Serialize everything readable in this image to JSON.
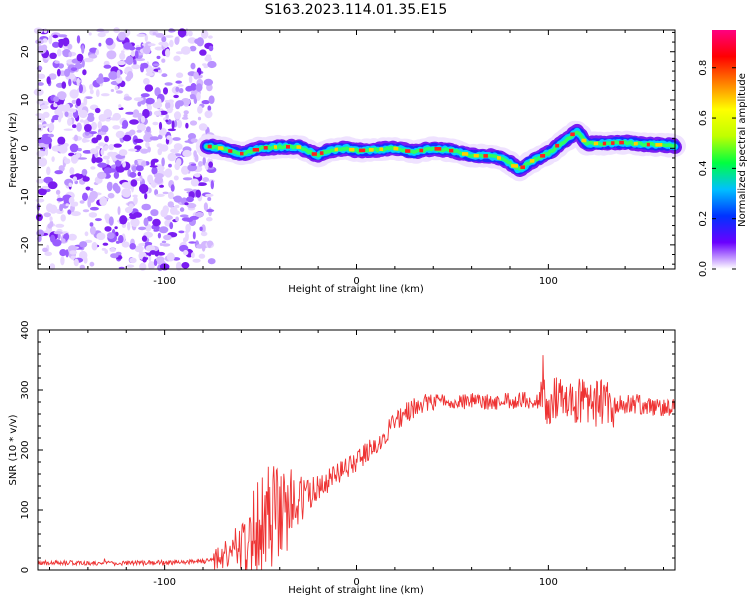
{
  "figure": {
    "title": "S163.2023.114.01.35.E15",
    "background": "#ffffff"
  },
  "chart_data": [
    {
      "type": "heatmap",
      "title": "",
      "xlabel": "Height of straight line (km)",
      "ylabel": "Frequency (Hz)",
      "xlim": [
        -166,
        166
      ],
      "ylim": [
        -25,
        24.5
      ],
      "x_ticks": [
        -100,
        0,
        100
      ],
      "x_tick_labels": [
        "-100",
        "0",
        "100"
      ],
      "y_ticks": [
        -20,
        -10,
        0,
        10,
        20
      ],
      "y_tick_labels": [
        "-20",
        "-10",
        "0",
        "10",
        "20"
      ],
      "grid": false,
      "noise_region_x": [
        -166,
        -75
      ],
      "ridge": {
        "x": [
          -78,
          -70,
          -60,
          -50,
          -40,
          -30,
          -20,
          -15,
          -5,
          0,
          10,
          20,
          30,
          40,
          50,
          60,
          70,
          75,
          80,
          85,
          90,
          95,
          100,
          105,
          110,
          115,
          120,
          130,
          140,
          150,
          160,
          166
        ],
        "freq_hz": [
          0.5,
          0,
          -1.2,
          0,
          0.3,
          0.3,
          -1.5,
          -0.5,
          0,
          -0.5,
          -0.3,
          0,
          -0.8,
          0,
          -0.5,
          -1.5,
          -1.6,
          -2,
          -3,
          -4.5,
          -3,
          -2,
          -1,
          0.5,
          2,
          3.5,
          1,
          1,
          1.2,
          0.8,
          0.7,
          0.5
        ],
        "peak_amplitude": 0.95
      },
      "colorbar": {
        "label": "Normalized spectral amplitude",
        "range": [
          0,
          0.95
        ],
        "ticks": [
          0.0,
          0.2,
          0.4,
          0.6,
          0.8
        ],
        "tick_labels": [
          "0.0",
          "0.2",
          "0.4",
          "0.6",
          "0.8"
        ],
        "colormap": [
          "#ffffff",
          "#6a00ff",
          "#0033ff",
          "#00c0ff",
          "#00ff40",
          "#c0ff00",
          "#ffff00",
          "#ff8000",
          "#ff0000",
          "#ff0080"
        ]
      }
    },
    {
      "type": "line",
      "title": "",
      "xlabel": "Height of straight line (km)",
      "ylabel": "SNR (10 * v/v)",
      "xlim": [
        -166,
        166
      ],
      "ylim": [
        0,
        400
      ],
      "x_ticks": [
        -100,
        0,
        100
      ],
      "x_tick_labels": [
        "-100",
        "0",
        "100"
      ],
      "y_ticks": [
        0,
        100,
        200,
        300,
        400
      ],
      "y_tick_labels": [
        "0",
        "100",
        "200",
        "300",
        "400"
      ],
      "grid": false,
      "series": [
        {
          "color": "#ee3333",
          "x": [
            -166,
            -150,
            -130,
            -110,
            -90,
            -78,
            -70,
            -60,
            -50,
            -40,
            -30,
            -20,
            -10,
            0,
            10,
            20,
            30,
            40,
            50,
            60,
            70,
            80,
            90,
            100,
            110,
            115,
            120,
            130,
            140,
            150,
            160,
            166
          ],
          "y": [
            12,
            12,
            11,
            12,
            13,
            15,
            25,
            45,
            70,
            95,
            115,
            135,
            160,
            180,
            210,
            245,
            272,
            280,
            278,
            282,
            280,
            282,
            283,
            280,
            283,
            285,
            278,
            278,
            276,
            275,
            270,
            270
          ]
        }
      ]
    }
  ]
}
